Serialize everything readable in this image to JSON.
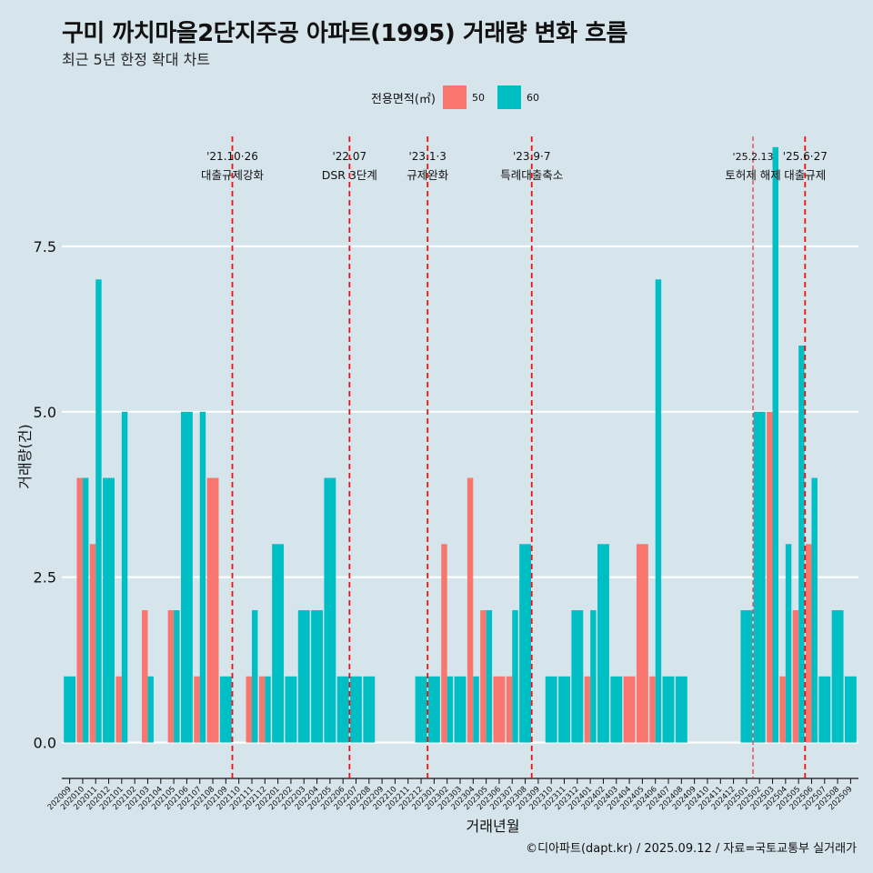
{
  "header": {
    "title": "구미 까치마을2단지주공 아파트(1995) 거래량 변화 흐름",
    "subtitle": "최근 5년 한정 확대 차트"
  },
  "legend": {
    "title": "전용면적(㎡)",
    "items": [
      {
        "label": "50",
        "color": "#f8766d"
      },
      {
        "label": "60",
        "color": "#00bfc4"
      }
    ]
  },
  "caption": "©디아파트(dapt.kr) / 2025.09.12 / 자료=국토교통부 실거래가",
  "chart_data": {
    "type": "bar",
    "stacking": "dodge",
    "xlabel": "거래년월",
    "ylabel": "거래량(건)",
    "ylim": [
      -0.35,
      9.3
    ],
    "yticks": [
      0.0,
      2.5,
      5.0,
      7.5
    ],
    "ytick_labels": [
      "0.0",
      "2.5",
      "5.0",
      "7.5"
    ],
    "categories": [
      "202009",
      "202010",
      "202011",
      "202012",
      "202101",
      "202102",
      "202103",
      "202104",
      "202105",
      "202106",
      "202107",
      "202108",
      "202109",
      "202110",
      "202111",
      "202112",
      "202201",
      "202202",
      "202203",
      "202204",
      "202205",
      "202206",
      "202207",
      "202208",
      "202209",
      "202210",
      "202211",
      "202212",
      "202301",
      "202302",
      "202303",
      "202304",
      "202305",
      "202306",
      "202307",
      "202308",
      "202309",
      "202310",
      "202311",
      "202312",
      "202401",
      "202402",
      "202403",
      "202404",
      "202405",
      "202406",
      "202407",
      "202408",
      "202409",
      "202410",
      "202411",
      "202412",
      "202501",
      "202502",
      "202503",
      "202504",
      "202505",
      "202506",
      "202507",
      "202508",
      "202509"
    ],
    "series": [
      {
        "name": "50",
        "color": "#f8766d",
        "values": [
          0,
          4,
          3,
          0,
          1,
          0,
          2,
          0,
          2,
          0,
          1,
          4,
          0,
          0,
          1,
          1,
          0,
          0,
          0,
          0,
          0,
          0,
          0,
          0,
          0,
          0,
          0,
          0,
          0,
          3,
          0,
          4,
          2,
          1,
          1,
          0,
          0,
          0,
          0,
          0,
          1,
          0,
          0,
          1,
          3,
          1,
          0,
          0,
          0,
          0,
          0,
          0,
          0,
          0,
          5,
          1,
          2,
          3,
          0,
          0,
          0
        ]
      },
      {
        "name": "60",
        "color": "#00bfc4",
        "values": [
          1,
          4,
          7,
          4,
          5,
          0,
          1,
          0,
          2,
          5,
          5,
          0,
          1,
          0,
          2,
          1,
          3,
          1,
          2,
          2,
          4,
          1,
          1,
          1,
          0,
          0,
          0,
          1,
          1,
          1,
          1,
          1,
          2,
          0,
          2,
          3,
          0,
          1,
          1,
          2,
          2,
          3,
          1,
          0,
          0,
          7,
          1,
          1,
          0,
          0,
          0,
          0,
          2,
          5,
          9,
          3,
          6,
          4,
          1,
          2,
          1
        ]
      }
    ],
    "events": [
      {
        "date_label": "'21.10·26",
        "label": "대출규제강화",
        "after_index": 12.5,
        "style": "bold"
      },
      {
        "date_label": "'22.07",
        "label": "DSR 3단계",
        "after_index": 21.5,
        "style": "bold"
      },
      {
        "date_label": "'23.1·3",
        "label": "규제완화",
        "after_index": 27.5,
        "style": "bold"
      },
      {
        "date_label": "'23.9·7",
        "label": "특례대출축소",
        "after_index": 35.5,
        "style": "bold"
      },
      {
        "date_label": "'25.2.13",
        "label": "토허제 해제",
        "after_index": 52.5,
        "style": "thin"
      },
      {
        "date_label": "'25.6·27",
        "label": "대출규제",
        "after_index": 56.5,
        "style": "bold"
      }
    ]
  }
}
